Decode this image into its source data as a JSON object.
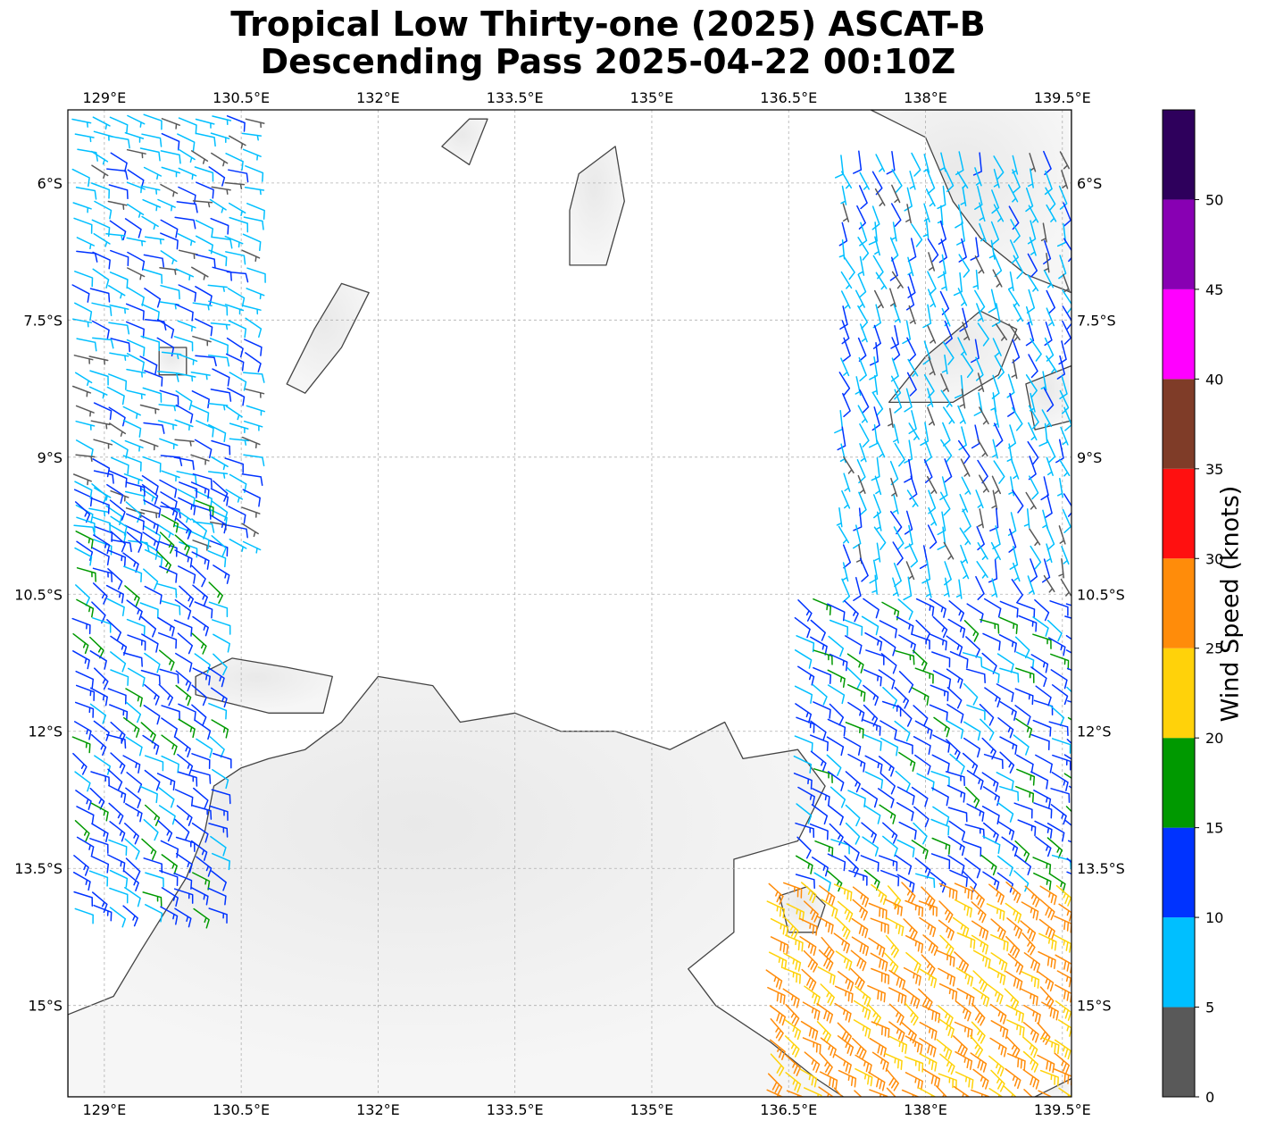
{
  "title": {
    "line1": "Tropical Low Thirty-one (2025) ASCAT-B",
    "line2": "Descending Pass 2025-04-22 00:10Z"
  },
  "map": {
    "projection": "plate carree",
    "lon_range": [
      128.6,
      139.6
    ],
    "lat_range": [
      -16.0,
      -5.2
    ],
    "lon_ticks": [
      "129°E",
      "130.5°E",
      "132°E",
      "133.5°E",
      "135°E",
      "136.5°E",
      "138°E",
      "139.5°E"
    ],
    "lat_ticks": [
      "6°S",
      "7.5°S",
      "9°S",
      "10.5°S",
      "12°S",
      "13.5°S",
      "15°S"
    ],
    "gridlines": true,
    "coastline_color": "#444444",
    "land_color": "#f2f2f2"
  },
  "colorbar": {
    "label": "Wind Speed (knots)",
    "ticks": [
      "0",
      "5",
      "10",
      "15",
      "20",
      "25",
      "30",
      "35",
      "40",
      "45",
      "50"
    ],
    "bins": [
      {
        "min": 0,
        "max": 5,
        "color": "#595959"
      },
      {
        "min": 5,
        "max": 10,
        "color": "#00bfff"
      },
      {
        "min": 10,
        "max": 15,
        "color": "#0033ff"
      },
      {
        "min": 15,
        "max": 20,
        "color": "#009900"
      },
      {
        "min": 20,
        "max": 25,
        "color": "#ffd20a"
      },
      {
        "min": 25,
        "max": 30,
        "color": "#ff8c0a"
      },
      {
        "min": 30,
        "max": 35,
        "color": "#ff1010"
      },
      {
        "min": 35,
        "max": 40,
        "color": "#7f3c28"
      },
      {
        "min": 40,
        "max": 45,
        "color": "#ff00ff"
      },
      {
        "min": 45,
        "max": 50,
        "color": "#8800b3"
      },
      {
        "min": 50,
        "max": 55,
        "color": "#2e005c"
      }
    ]
  },
  "wind_regions": [
    {
      "name": "western-swath-north",
      "lon": [
        128.6,
        130.6
      ],
      "lat": [
        -10.0,
        -5.2
      ],
      "speed_kt": 8,
      "dir_deg": 110
    },
    {
      "name": "western-swath-south",
      "lon": [
        128.6,
        130.2
      ],
      "lat": [
        -14.0,
        -9.2
      ],
      "speed_kt": 12,
      "dir_deg": 120
    },
    {
      "name": "eastern-swath-north",
      "lon": [
        137.0,
        139.6
      ],
      "lat": [
        -10.5,
        -5.6
      ],
      "speed_kt": 8,
      "dir_deg": 160
    },
    {
      "name": "eastern-swath-middle",
      "lon": [
        136.5,
        139.6
      ],
      "lat": [
        -13.6,
        -10.5
      ],
      "speed_kt": 12,
      "dir_deg": 120
    },
    {
      "name": "eastern-swath-south",
      "lon": [
        136.2,
        139.6
      ],
      "lat": [
        -16.0,
        -13.6
      ],
      "speed_kt": 26,
      "dir_deg": 125
    }
  ]
}
